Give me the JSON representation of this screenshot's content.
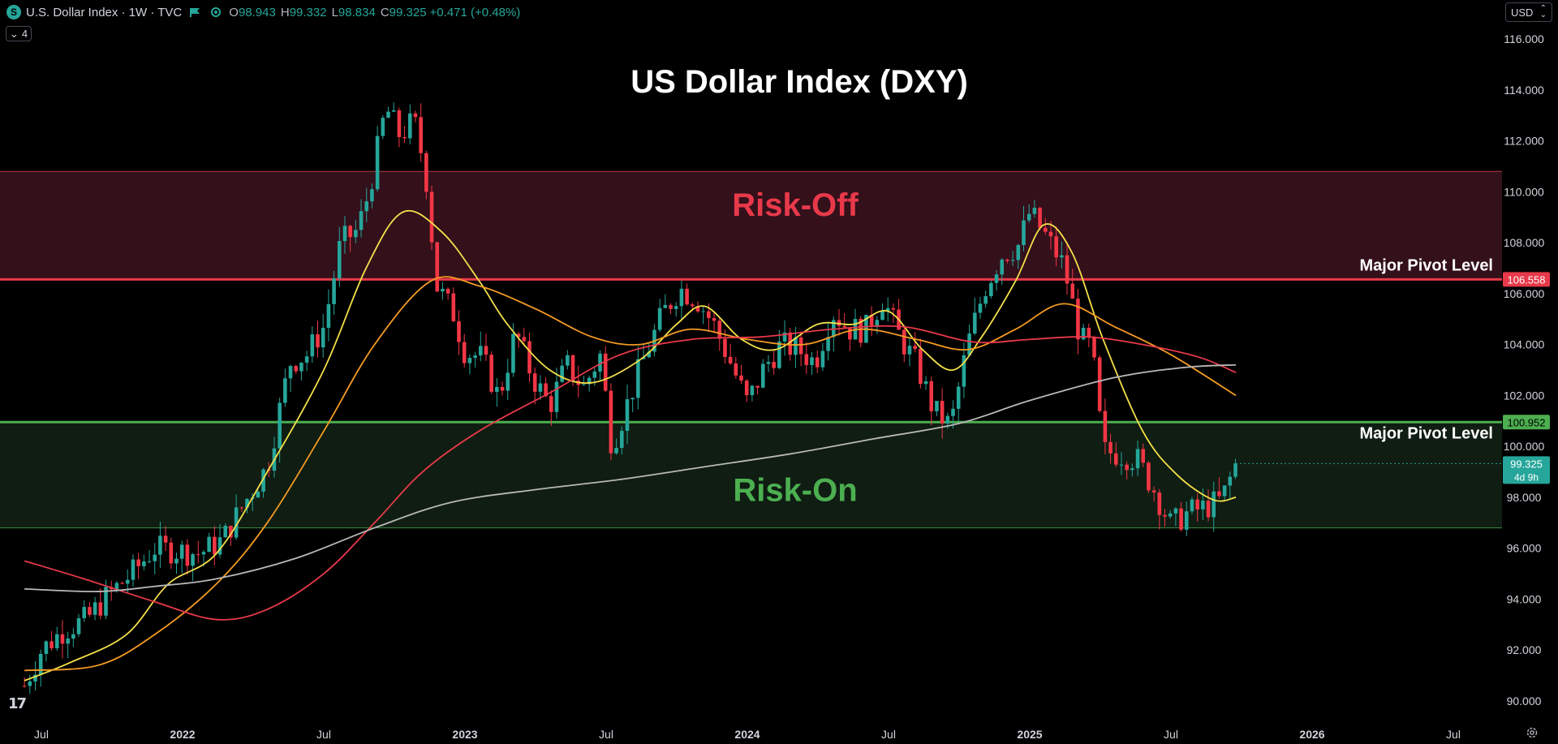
{
  "header": {
    "symbol_badge": "S",
    "title": "U.S. Dollar Index · 1W · TVC",
    "ohlc": [
      {
        "k": "O",
        "v": "98.943"
      },
      {
        "k": "H",
        "v": "99.332"
      },
      {
        "k": "L",
        "v": "98.834"
      },
      {
        "k": "C",
        "v": "99.325"
      }
    ],
    "change": "+0.471 (+0.48%)",
    "indicator_count": "4",
    "currency": "USD",
    "logo_text": "17"
  },
  "colors": {
    "background": "#000000",
    "up": "#26a69a",
    "down": "#f23645",
    "risk_off_zone": "#33101a",
    "risk_on_zone": "#0f1d12",
    "risk_off_text": "#e8394a",
    "risk_on_text": "#4caf50",
    "ma_yellow": "#f5e04a",
    "ma_orange": "#f59b23",
    "ma_red": "#e8394a",
    "ma_gray": "#b8b8b8"
  },
  "chart_data": {
    "type": "candlestick",
    "title": "US Dollar Index (DXY)",
    "ylim": [
      89.5,
      117.0
    ],
    "y_ticks": [
      "116.000",
      "114.000",
      "112.000",
      "110.000",
      "108.000",
      "106.000",
      "104.000",
      "102.000",
      "100.000",
      "98.000",
      "96.000",
      "94.000",
      "92.000",
      "90.000"
    ],
    "x_ticks": [
      "Jul",
      "2022",
      "Jul",
      "2023",
      "Jul",
      "2024",
      "Jul",
      "2025",
      "Jul",
      "2026",
      "Jul"
    ],
    "zones": [
      {
        "label": "Risk-Off",
        "from": 106.558,
        "to": 110.8
      },
      {
        "label": "Risk-On",
        "from": 96.8,
        "to": 100.952
      }
    ],
    "pivot_levels": [
      {
        "label": "Major Pivot Level",
        "value": 106.558,
        "badge": "106.558"
      },
      {
        "label": "Major Pivot Level",
        "value": 100.952,
        "badge": "100.952"
      }
    ],
    "last_price": {
      "value": 99.325,
      "badge": "99.325",
      "countdown": "4d 9h"
    },
    "series": [
      {
        "type": "ma",
        "period": 10,
        "points": [
          [
            2021.44,
            90.8
          ],
          [
            2021.6,
            91.5
          ],
          [
            2021.8,
            92.6
          ],
          [
            2021.95,
            94.6
          ],
          [
            2022.12,
            95.8
          ],
          [
            2022.3,
            99.0
          ],
          [
            2022.5,
            103.0
          ],
          [
            2022.65,
            107.0
          ],
          [
            2022.78,
            109.2
          ],
          [
            2022.92,
            108.4
          ],
          [
            2023.05,
            106.5
          ],
          [
            2023.15,
            104.8
          ],
          [
            2023.3,
            103.0
          ],
          [
            2023.45,
            102.5
          ],
          [
            2023.62,
            103.4
          ],
          [
            2023.75,
            104.8
          ],
          [
            2023.85,
            105.5
          ],
          [
            2023.98,
            104.2
          ],
          [
            2024.1,
            103.8
          ],
          [
            2024.25,
            104.8
          ],
          [
            2024.38,
            104.8
          ],
          [
            2024.5,
            105.3
          ],
          [
            2024.62,
            103.8
          ],
          [
            2024.73,
            103.0
          ],
          [
            2024.83,
            104.3
          ],
          [
            2024.95,
            106.5
          ],
          [
            2025.05,
            108.7
          ],
          [
            2025.15,
            107.6
          ],
          [
            2025.26,
            104.2
          ],
          [
            2025.4,
            100.6
          ],
          [
            2025.52,
            98.9
          ],
          [
            2025.65,
            97.9
          ],
          [
            2025.73,
            98.0
          ]
        ]
      },
      {
        "type": "ma",
        "period": 20,
        "points": [
          [
            2021.44,
            91.2
          ],
          [
            2021.7,
            91.4
          ],
          [
            2021.9,
            92.6
          ],
          [
            2022.12,
            94.6
          ],
          [
            2022.3,
            97.0
          ],
          [
            2022.5,
            100.6
          ],
          [
            2022.68,
            104.0
          ],
          [
            2022.88,
            106.5
          ],
          [
            2023.05,
            106.3
          ],
          [
            2023.25,
            105.4
          ],
          [
            2023.45,
            104.3
          ],
          [
            2023.62,
            104.0
          ],
          [
            2023.8,
            104.6
          ],
          [
            2024.0,
            104.2
          ],
          [
            2024.2,
            104.0
          ],
          [
            2024.4,
            104.6
          ],
          [
            2024.6,
            104.2
          ],
          [
            2024.78,
            103.8
          ],
          [
            2024.95,
            104.6
          ],
          [
            2025.12,
            105.6
          ],
          [
            2025.3,
            104.7
          ],
          [
            2025.5,
            103.6
          ],
          [
            2025.73,
            102.0
          ]
        ]
      },
      {
        "type": "ma",
        "period": 50,
        "points": [
          [
            2021.44,
            95.5
          ],
          [
            2021.65,
            94.8
          ],
          [
            2021.9,
            93.9
          ],
          [
            2022.12,
            93.2
          ],
          [
            2022.3,
            93.6
          ],
          [
            2022.5,
            95.0
          ],
          [
            2022.68,
            97.0
          ],
          [
            2022.85,
            99.0
          ],
          [
            2023.05,
            100.6
          ],
          [
            2023.3,
            102.1
          ],
          [
            2023.55,
            103.6
          ],
          [
            2023.8,
            104.2
          ],
          [
            2024.05,
            104.3
          ],
          [
            2024.3,
            104.6
          ],
          [
            2024.55,
            104.7
          ],
          [
            2024.8,
            104.1
          ],
          [
            2025.0,
            104.2
          ],
          [
            2025.2,
            104.3
          ],
          [
            2025.4,
            104.0
          ],
          [
            2025.6,
            103.5
          ],
          [
            2025.73,
            102.9
          ]
        ]
      },
      {
        "type": "ma",
        "period": 200,
        "points": [
          [
            2021.44,
            94.4
          ],
          [
            2021.7,
            94.3
          ],
          [
            2021.9,
            94.5
          ],
          [
            2022.12,
            94.8
          ],
          [
            2022.4,
            95.6
          ],
          [
            2022.68,
            96.8
          ],
          [
            2022.95,
            97.8
          ],
          [
            2023.25,
            98.3
          ],
          [
            2023.55,
            98.7
          ],
          [
            2023.85,
            99.2
          ],
          [
            2024.15,
            99.7
          ],
          [
            2024.45,
            100.3
          ],
          [
            2024.75,
            100.9
          ],
          [
            2025.0,
            101.8
          ],
          [
            2025.3,
            102.7
          ],
          [
            2025.55,
            103.1
          ],
          [
            2025.73,
            103.2
          ]
        ]
      },
      {
        "type": "candles",
        "points": [
          [
            2021.44,
            90.6
          ],
          [
            2021.5,
            92.0
          ],
          [
            2021.58,
            92.8
          ],
          [
            2021.66,
            93.2
          ],
          [
            2021.74,
            94.2
          ],
          [
            2021.82,
            95.0
          ],
          [
            2021.9,
            96.0
          ],
          [
            2021.98,
            95.9
          ],
          [
            2022.06,
            95.8
          ],
          [
            2022.14,
            96.3
          ],
          [
            2022.22,
            97.8
          ],
          [
            2022.3,
            99.2
          ],
          [
            2022.38,
            103.3
          ],
          [
            2022.44,
            103.6
          ],
          [
            2022.5,
            104.7
          ],
          [
            2022.56,
            108.0
          ],
          [
            2022.62,
            108.5
          ],
          [
            2022.66,
            110.0
          ],
          [
            2022.72,
            113.3
          ],
          [
            2022.77,
            112.2
          ],
          [
            2022.82,
            112.8
          ],
          [
            2022.86,
            110.8
          ],
          [
            2022.9,
            106.3
          ],
          [
            2022.96,
            105.2
          ],
          [
            2023.0,
            103.7
          ],
          [
            2023.06,
            103.5
          ],
          [
            2023.12,
            101.9
          ],
          [
            2023.18,
            104.5
          ],
          [
            2023.24,
            102.7
          ],
          [
            2023.3,
            101.6
          ],
          [
            2023.36,
            103.2
          ],
          [
            2023.42,
            102.3
          ],
          [
            2023.48,
            103.6
          ],
          [
            2023.52,
            100.0
          ],
          [
            2023.56,
            101.2
          ],
          [
            2023.62,
            103.1
          ],
          [
            2023.7,
            105.2
          ],
          [
            2023.76,
            106.2
          ],
          [
            2023.82,
            105.8
          ],
          [
            2023.88,
            104.8
          ],
          [
            2023.94,
            103.3
          ],
          [
            2024.0,
            101.7
          ],
          [
            2024.06,
            103.1
          ],
          [
            2024.12,
            104.0
          ],
          [
            2024.18,
            103.8
          ],
          [
            2024.24,
            103.3
          ],
          [
            2024.3,
            105.3
          ],
          [
            2024.36,
            104.6
          ],
          [
            2024.42,
            104.6
          ],
          [
            2024.48,
            105.8
          ],
          [
            2024.54,
            104.3
          ],
          [
            2024.6,
            103.2
          ],
          [
            2024.66,
            101.4
          ],
          [
            2024.72,
            100.8
          ],
          [
            2024.78,
            104.0
          ],
          [
            2024.84,
            106.2
          ],
          [
            2024.9,
            107.5
          ],
          [
            2024.96,
            107.9
          ],
          [
            2025.0,
            109.2
          ],
          [
            2025.06,
            108.2
          ],
          [
            2025.12,
            107.1
          ],
          [
            2025.18,
            104.2
          ],
          [
            2025.22,
            103.9
          ],
          [
            2025.26,
            99.8
          ],
          [
            2025.32,
            99.7
          ],
          [
            2025.38,
            99.5
          ],
          [
            2025.44,
            98.3
          ],
          [
            2025.5,
            96.9
          ],
          [
            2025.56,
            97.4
          ],
          [
            2025.62,
            97.6
          ],
          [
            2025.68,
            97.9
          ],
          [
            2025.73,
            99.3
          ]
        ]
      }
    ]
  }
}
